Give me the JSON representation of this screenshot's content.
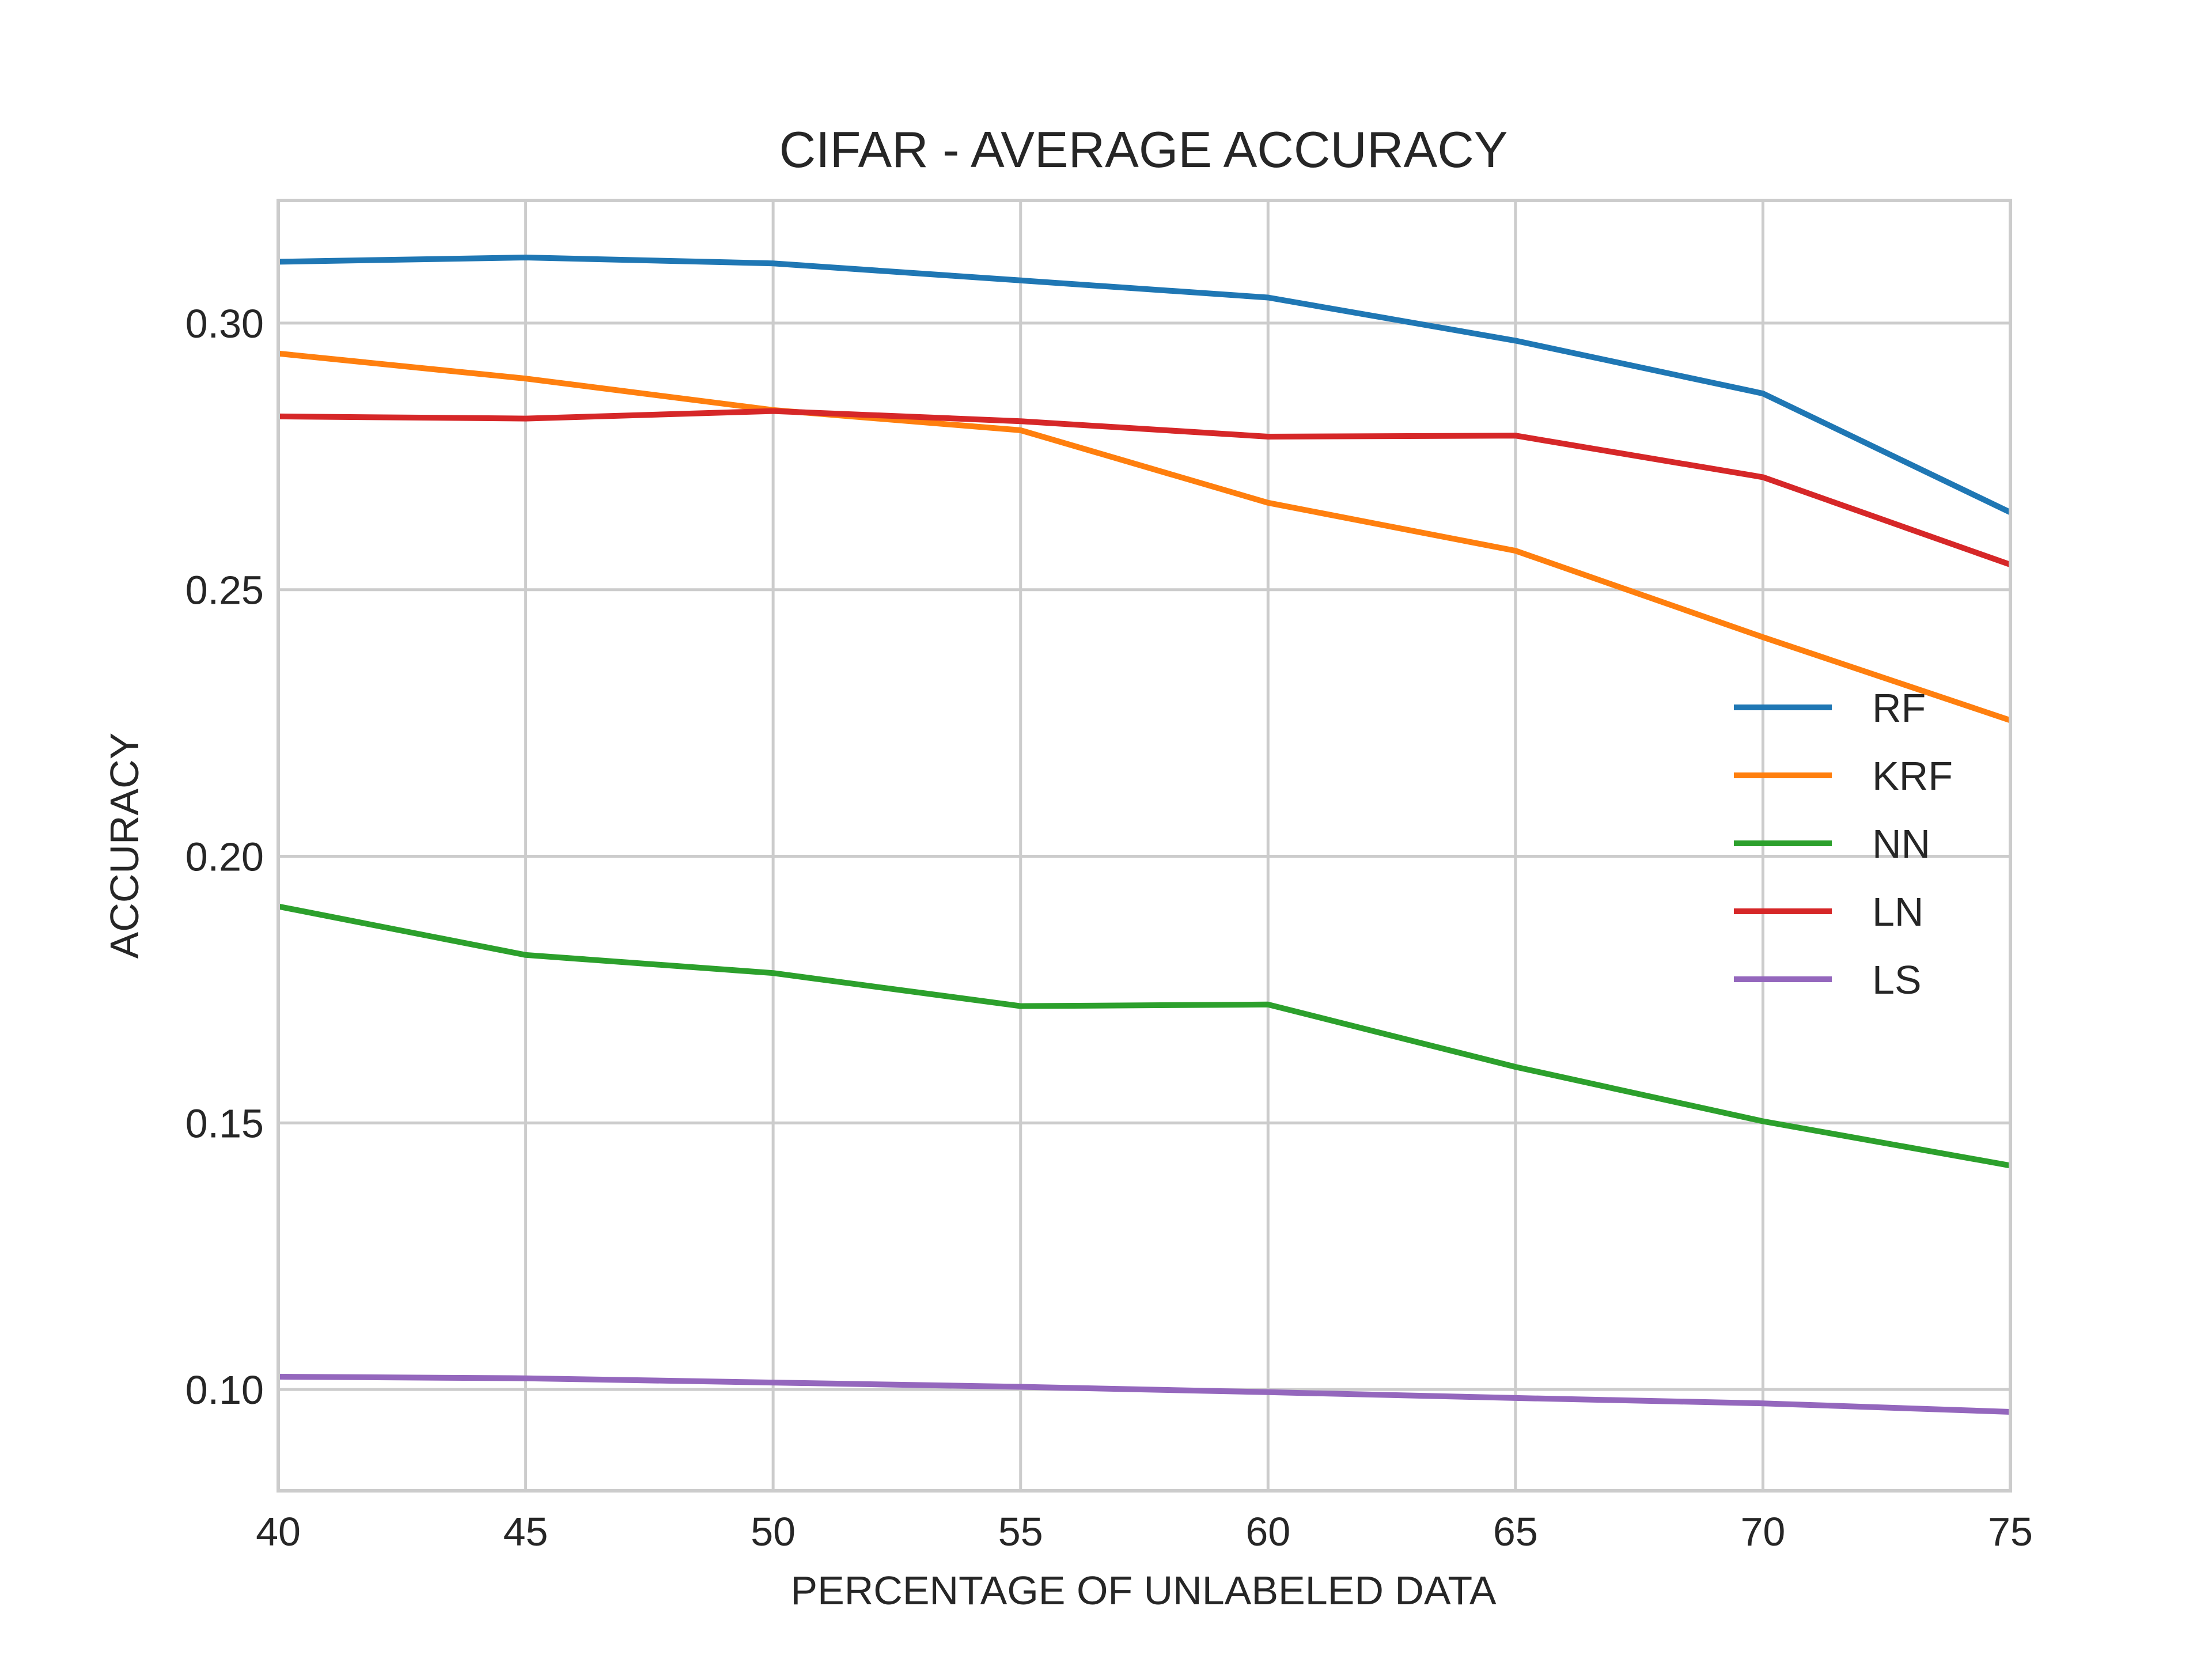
{
  "chart_data": {
    "type": "line",
    "title": "CIFAR - AVERAGE ACCURACY",
    "xlabel": "PERCENTAGE OF UNLABELED DATA",
    "ylabel": "ACCURACY",
    "x": [
      40,
      45,
      50,
      55,
      60,
      65,
      70,
      75
    ],
    "xlim": [
      40,
      75
    ],
    "ylim": [
      0.081,
      0.323
    ],
    "xticks": [
      "40",
      "45",
      "50",
      "55",
      "60",
      "65",
      "70",
      "75"
    ],
    "yticks": [
      "0.10",
      "0.15",
      "0.20",
      "0.25",
      "0.30"
    ],
    "grid": true,
    "legend_position": "center-right",
    "series": [
      {
        "name": "RF",
        "color": "#1f77b4",
        "values": [
          0.3115,
          0.3123,
          0.3112,
          0.308,
          0.3048,
          0.2967,
          0.2868,
          0.2645
        ]
      },
      {
        "name": "KRF",
        "color": "#ff7f0e",
        "values": [
          0.2943,
          0.2896,
          0.2837,
          0.2799,
          0.2663,
          0.2573,
          0.2411,
          0.2255
        ]
      },
      {
        "name": "NN",
        "color": "#2ca02c",
        "values": [
          0.1906,
          0.1815,
          0.1781,
          0.1719,
          0.1722,
          0.1605,
          0.1503,
          0.142
        ]
      },
      {
        "name": "LN",
        "color": "#d62728",
        "values": [
          0.2825,
          0.2821,
          0.2835,
          0.2816,
          0.2787,
          0.2789,
          0.2711,
          0.2547
        ]
      },
      {
        "name": "LS",
        "color": "#9467bd",
        "values": [
          0.1024,
          0.1021,
          0.1013,
          0.1005,
          0.0995,
          0.0984,
          0.0974,
          0.0958
        ]
      }
    ]
  }
}
